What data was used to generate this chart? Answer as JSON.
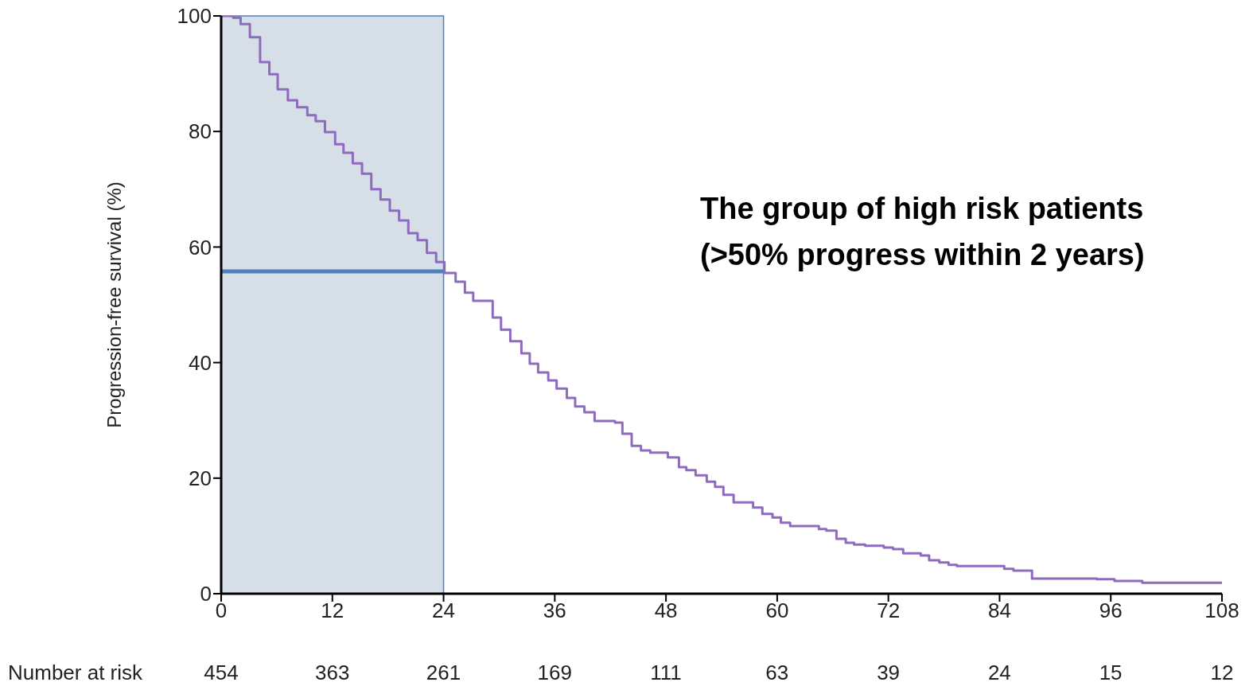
{
  "chart_data": {
    "type": "step",
    "ylabel": "Progression-free survival (%)",
    "xlim": [
      0,
      108
    ],
    "xticks": [
      0,
      12,
      24,
      36,
      48,
      60,
      72,
      84,
      96,
      108
    ],
    "ylim": [
      0,
      100
    ],
    "yticks": [
      0,
      20,
      40,
      60,
      80,
      100
    ],
    "grid": false,
    "legend": false,
    "marker": "none",
    "line_style": "solid",
    "bands": [
      {
        "axis": "x",
        "from": 0,
        "to": 24,
        "color": "#d6dee8"
      }
    ],
    "series": [
      {
        "color": "#8e6bbf",
        "x": [
          0,
          1.3,
          2.1,
          3.1,
          4.2,
          5.2,
          6.1,
          7.2,
          8.2,
          9.3,
          10.2,
          11.2,
          12.3,
          13.2,
          14.2,
          15.2,
          16.2,
          17.2,
          18.2,
          19.2,
          20.2,
          21.2,
          22.2,
          23.2,
          24.1,
          25.3,
          26.3,
          27.2,
          29.3,
          30.2,
          31.2,
          32.4,
          33.3,
          34.2,
          35.3,
          36.2,
          37.3,
          38.2,
          39.2,
          40.3,
          42.5,
          43.3,
          44.3,
          45.3,
          46.3,
          48.2,
          49.4,
          50.2,
          51.2,
          52.4,
          53.3,
          54.2,
          55.3,
          57.4,
          58.4,
          59.5,
          60.4,
          61.4,
          64.5,
          65.3,
          66.4,
          67.4,
          68.3,
          69.5,
          71.5,
          72.5,
          73.6,
          75.5,
          76.4,
          77.5,
          78.5,
          79.4,
          84.5,
          85.5,
          87.5,
          94.5,
          96.4,
          99.4,
          108
        ],
        "values": [
          100,
          99.7,
          98.6,
          96.3,
          92.0,
          89.9,
          87.3,
          85.4,
          84.2,
          82.8,
          81.8,
          79.9,
          77.8,
          76.3,
          74.5,
          72.7,
          70.0,
          68.2,
          66.3,
          64.6,
          62.4,
          61.2,
          59.0,
          57.4,
          55.5,
          54.0,
          52.1,
          50.7,
          47.8,
          45.7,
          43.7,
          41.6,
          39.8,
          38.3,
          36.9,
          35.5,
          33.9,
          32.4,
          31.4,
          29.9,
          29.6,
          27.7,
          25.6,
          24.8,
          24.4,
          23.6,
          21.9,
          21.4,
          20.5,
          19.4,
          18.5,
          17.1,
          15.8,
          14.9,
          13.8,
          13.2,
          12.3,
          11.7,
          11.2,
          10.9,
          9.5,
          8.8,
          8.5,
          8.3,
          8.0,
          7.7,
          7.0,
          6.6,
          5.8,
          5.4,
          5.0,
          4.8,
          4.3,
          4.0,
          2.6,
          2.5,
          2.2,
          1.9,
          1.9
        ]
      },
      {
        "type": "line",
        "color": "#4f81bd",
        "x": [
          0,
          24
        ],
        "values": [
          55.8,
          55.8
        ]
      }
    ],
    "annotations": [
      "Number at risk",
      "454",
      "363",
      "261",
      "169",
      "111",
      "63",
      "39",
      "24",
      "15",
      "12",
      "The group of high risk patients\n(>50% progress within 2 years)"
    ]
  }
}
